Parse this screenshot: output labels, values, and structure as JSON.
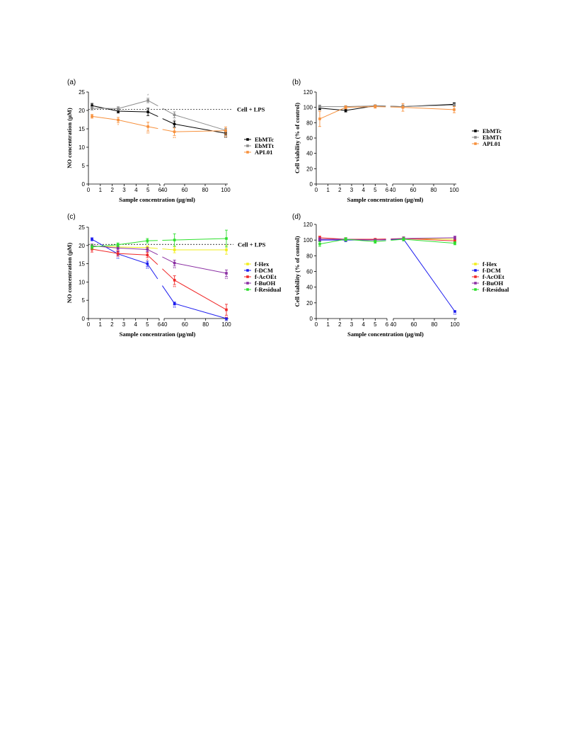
{
  "chart_data": [
    {
      "panel": "(a)",
      "type": "line",
      "ylabel": "NO concentration (μM)",
      "xlabel": "Sample concentration (μg/ml)",
      "ylim": [
        0,
        25
      ],
      "yticks": [
        0,
        5,
        10,
        15,
        20,
        25
      ],
      "xticks_left": [
        0,
        1,
        2,
        3,
        4,
        5,
        6
      ],
      "xticks_right": [
        40,
        60,
        80,
        100
      ],
      "reference": {
        "label": "Cell + LPS",
        "value": 20.3
      },
      "legend_position": "right",
      "series": [
        {
          "name": "EbMTc",
          "color": "#000000",
          "x": [
            0.3,
            2.5,
            5,
            50,
            100
          ],
          "y": [
            21.3,
            19.8,
            19.6,
            16.3,
            13.8
          ],
          "err": [
            0.6,
            0.5,
            1.0,
            0.8,
            0.5
          ],
          "stars": [
            "",
            "",
            "",
            "",
            "**"
          ]
        },
        {
          "name": "EbMTt",
          "color": "#8c8c8c",
          "x": [
            0.3,
            2.5,
            5,
            50,
            100
          ],
          "y": [
            20.6,
            20.5,
            22.7,
            18.8,
            14.6
          ],
          "err": [
            0.5,
            0.5,
            0.6,
            0.8,
            0.5
          ],
          "stars": [
            "",
            "",
            "*",
            "*",
            "**"
          ]
        },
        {
          "name": "APL01",
          "color": "#f7913d",
          "x": [
            0.3,
            2.5,
            5,
            50,
            100
          ],
          "y": [
            18.4,
            17.4,
            15.6,
            14.2,
            14.5
          ],
          "err": [
            0.5,
            0.7,
            1.2,
            1.0,
            1.0
          ],
          "stars": [
            "",
            "*",
            "**",
            "**",
            "**"
          ]
        }
      ]
    },
    {
      "panel": "(b)",
      "type": "line",
      "ylabel": "Cell viability (% of control)",
      "xlabel": "Sample concentration (μg/ml)",
      "ylim": [
        0,
        120
      ],
      "yticks": [
        0,
        20,
        40,
        60,
        80,
        100,
        120
      ],
      "xticks_left": [
        0,
        1,
        2,
        3,
        4,
        5,
        6
      ],
      "xticks_right": [
        40,
        60,
        80,
        100
      ],
      "legend_position": "right",
      "series": [
        {
          "name": "EbMTc",
          "color": "#000000",
          "x": [
            0.3,
            2.5,
            5,
            50,
            100
          ],
          "y": [
            99,
            96,
            102,
            101,
            104
          ],
          "err": [
            2,
            2,
            1,
            2,
            2
          ],
          "stars": [
            "",
            "",
            "",
            "",
            ""
          ]
        },
        {
          "name": "EbMTt",
          "color": "#8c8c8c",
          "x": [
            0.3,
            2.5,
            5,
            50,
            100
          ],
          "y": [
            101,
            101,
            102,
            101,
            103
          ],
          "err": [
            2,
            1,
            1,
            2,
            2
          ],
          "stars": [
            "",
            "",
            "",
            "",
            ""
          ]
        },
        {
          "name": "APL01",
          "color": "#f7913d",
          "x": [
            0.3,
            2.5,
            5,
            50,
            100
          ],
          "y": [
            85,
            100,
            101,
            100,
            97
          ],
          "err": [
            10,
            2,
            2,
            5,
            4
          ],
          "stars": [
            "",
            "",
            "",
            "",
            ""
          ]
        }
      ]
    },
    {
      "panel": "(c)",
      "type": "line",
      "ylabel": "NO concentration (μM)",
      "xlabel": "Sample concentration (μg/ml)",
      "ylim": [
        0,
        25
      ],
      "yticks": [
        0,
        5,
        10,
        15,
        20,
        25
      ],
      "xticks_left": [
        0,
        1,
        2,
        3,
        4,
        5,
        6
      ],
      "xticks_right": [
        40,
        60,
        80,
        100
      ],
      "reference": {
        "label": "Cell + LPS",
        "value": 20.3
      },
      "legend_position": "right",
      "series": [
        {
          "name": "f-Hex",
          "color": "#f2ee1c",
          "x": [
            0.3,
            2.5,
            5,
            50,
            100
          ],
          "y": [
            19.8,
            19.6,
            19.4,
            18.8,
            18.8
          ],
          "err": [
            0.5,
            0.5,
            0.5,
            0.8,
            1.2
          ],
          "stars": [
            "",
            "",
            "",
            "",
            ""
          ]
        },
        {
          "name": "f-DCM",
          "color": "#1c1cef",
          "x": [
            0.3,
            2.5,
            5,
            50,
            100
          ],
          "y": [
            21.7,
            17.7,
            15.0,
            4.1,
            0.0
          ],
          "err": [
            0.4,
            0.6,
            0.7,
            0.4,
            0.2
          ],
          "stars": [
            "",
            "**",
            "**",
            "**",
            "**"
          ]
        },
        {
          "name": "f-AcOEt",
          "color": "#f02828",
          "x": [
            0.3,
            2.5,
            5,
            50,
            100
          ],
          "y": [
            19.0,
            17.8,
            17.4,
            10.5,
            2.4
          ],
          "err": [
            0.8,
            0.7,
            0.7,
            1.2,
            1.5
          ],
          "stars": [
            "",
            "",
            "*",
            "**",
            "**"
          ]
        },
        {
          "name": "f-BuOH",
          "color": "#8b2fa3",
          "x": [
            0.3,
            2.5,
            5,
            50,
            100
          ],
          "y": [
            19.9,
            19.3,
            18.9,
            15.2,
            12.4
          ],
          "err": [
            0.5,
            0.5,
            0.6,
            0.8,
            0.9
          ],
          "stars": [
            "",
            "",
            "",
            "**",
            "**"
          ]
        },
        {
          "name": "f-Residual",
          "color": "#2ee02e",
          "x": [
            0.3,
            2.5,
            5,
            50,
            100
          ],
          "y": [
            19.6,
            20.2,
            21.3,
            21.5,
            21.9
          ],
          "err": [
            0.6,
            0.5,
            0.6,
            1.7,
            2.3
          ],
          "stars": [
            "",
            "",
            "",
            "",
            ""
          ]
        }
      ]
    },
    {
      "panel": "(d)",
      "type": "line",
      "ylabel": "Cell viability (% of control)",
      "xlabel": "Sample concentration (μg/ml)",
      "ylim": [
        0,
        120
      ],
      "yticks": [
        0,
        20,
        40,
        60,
        80,
        100,
        120
      ],
      "xticks_left": [
        0,
        1,
        2,
        3,
        4,
        5,
        6
      ],
      "xticks_right": [
        40,
        60,
        80,
        100
      ],
      "legend_position": "right",
      "series": [
        {
          "name": "f-Hex",
          "color": "#f2ee1c",
          "x": [
            0.3,
            2.5,
            5,
            50,
            100
          ],
          "y": [
            101,
            101,
            100,
            102,
            101
          ],
          "err": [
            2,
            2,
            1,
            2,
            2
          ],
          "stars": [
            "",
            "",
            "",
            "",
            ""
          ]
        },
        {
          "name": "f-DCM",
          "color": "#1c1cef",
          "x": [
            0.3,
            2.5,
            5,
            50,
            100
          ],
          "y": [
            100,
            100,
            100,
            101,
            9
          ],
          "err": [
            2,
            2,
            1,
            2,
            1
          ],
          "stars": [
            "",
            "",
            "",
            "",
            "**"
          ]
        },
        {
          "name": "f-AcOEt",
          "color": "#f02828",
          "x": [
            0.3,
            2.5,
            5,
            50,
            100
          ],
          "y": [
            103,
            101,
            101,
            102,
            99
          ],
          "err": [
            2,
            2,
            1,
            2,
            2
          ],
          "stars": [
            "",
            "",
            "",
            "",
            ""
          ]
        },
        {
          "name": "f-BuOH",
          "color": "#8b2fa3",
          "x": [
            0.3,
            2.5,
            5,
            50,
            100
          ],
          "y": [
            101,
            101,
            100,
            102,
            103
          ],
          "err": [
            2,
            2,
            1,
            2,
            2
          ],
          "stars": [
            "",
            "",
            "",
            "",
            ""
          ]
        },
        {
          "name": "f-Residual",
          "color": "#2ee02e",
          "x": [
            0.3,
            2.5,
            5,
            50,
            100
          ],
          "y": [
            95,
            101,
            98,
            101,
            96
          ],
          "err": [
            3,
            2,
            2,
            2,
            2
          ],
          "stars": [
            "",
            "",
            "",
            "",
            ""
          ]
        }
      ]
    }
  ]
}
